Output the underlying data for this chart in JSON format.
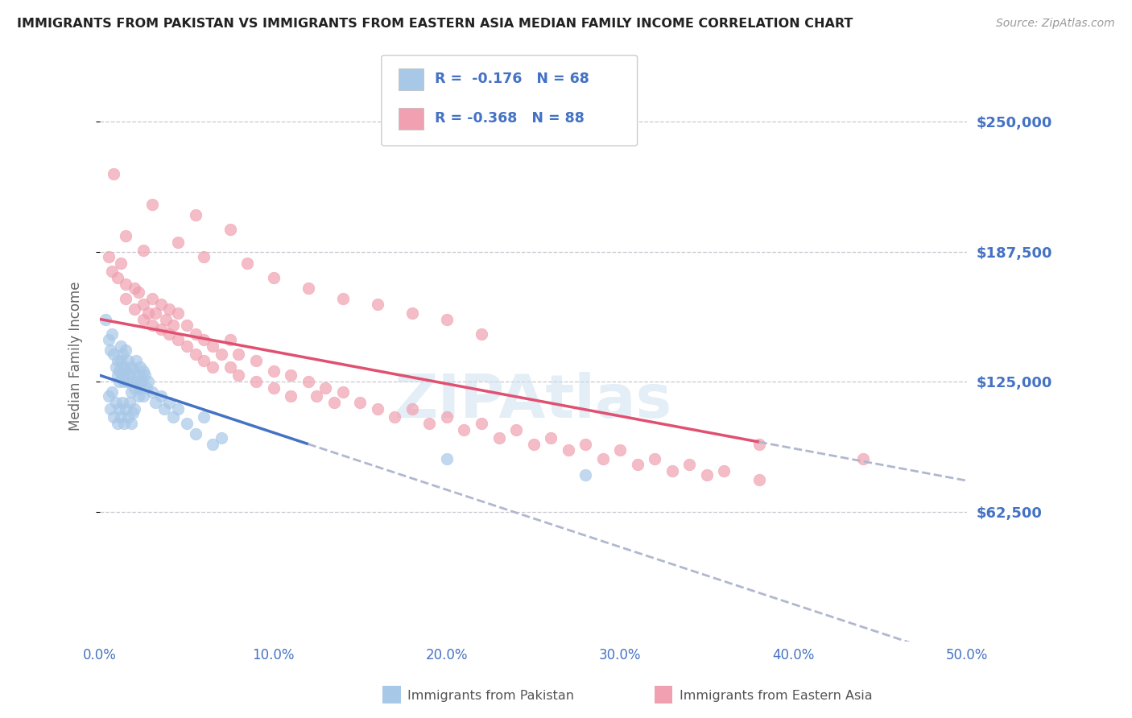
{
  "title": "IMMIGRANTS FROM PAKISTAN VS IMMIGRANTS FROM EASTERN ASIA MEDIAN FAMILY INCOME CORRELATION CHART",
  "source": "Source: ZipAtlas.com",
  "ylabel": "Median Family Income",
  "xlim": [
    0.0,
    50.0
  ],
  "ylim": [
    0,
    275000
  ],
  "yticks": [
    62500,
    125000,
    187500,
    250000
  ],
  "ytick_labels": [
    "$62,500",
    "$125,000",
    "$187,500",
    "$250,000"
  ],
  "background_color": "#ffffff",
  "grid_color": "#c8c8d0",
  "watermark": "ZIPAtlas",
  "legend_R1": "R =  -0.176",
  "legend_N1": "N = 68",
  "legend_R2": "R = -0.368",
  "legend_N2": "N = 88",
  "series1_name": "Immigrants from Pakistan",
  "series2_name": "Immigrants from Eastern Asia",
  "series1_color": "#a8c8e8",
  "series2_color": "#f0a0b0",
  "series1_line_color": "#4472c4",
  "series2_line_color": "#e05070",
  "dashed_color": "#b0b8d0",
  "title_color": "#222222",
  "axis_label_color": "#4472c4",
  "xticks": [
    0,
    10,
    20,
    30,
    40,
    50
  ],
  "xtick_labels": [
    "0.0%",
    "10.0%",
    "20.0%",
    "30.0%",
    "40.0%",
    "50.0%"
  ],
  "pk_line_x0": 0.0,
  "pk_line_x1": 12.0,
  "pk_line_y0": 128000,
  "pk_line_y1": 95000,
  "pk_dash_x0": 12.0,
  "pk_dash_x1": 50.0,
  "ea_line_x0": 0.0,
  "ea_line_x1": 38.0,
  "ea_line_y0": 155000,
  "ea_line_y1": 96000,
  "ea_dash_x0": 38.0,
  "ea_dash_x1": 50.0,
  "pakistan_points": [
    [
      0.3,
      155000
    ],
    [
      0.5,
      145000
    ],
    [
      0.6,
      140000
    ],
    [
      0.7,
      148000
    ],
    [
      0.8,
      138000
    ],
    [
      0.9,
      132000
    ],
    [
      1.0,
      128000
    ],
    [
      1.0,
      135000
    ],
    [
      1.1,
      130000
    ],
    [
      1.1,
      125000
    ],
    [
      1.2,
      142000
    ],
    [
      1.2,
      135000
    ],
    [
      1.3,
      138000
    ],
    [
      1.3,
      128000
    ],
    [
      1.4,
      132000
    ],
    [
      1.4,
      125000
    ],
    [
      1.5,
      140000
    ],
    [
      1.5,
      130000
    ],
    [
      1.6,
      135000
    ],
    [
      1.6,
      125000
    ],
    [
      1.7,
      128000
    ],
    [
      1.8,
      132000
    ],
    [
      1.8,
      120000
    ],
    [
      1.9,
      125000
    ],
    [
      2.0,
      130000
    ],
    [
      2.0,
      122000
    ],
    [
      2.1,
      135000
    ],
    [
      2.1,
      125000
    ],
    [
      2.2,
      128000
    ],
    [
      2.2,
      118000
    ],
    [
      2.3,
      132000
    ],
    [
      2.3,
      122000
    ],
    [
      2.4,
      125000
    ],
    [
      2.5,
      130000
    ],
    [
      2.5,
      118000
    ],
    [
      2.6,
      128000
    ],
    [
      2.7,
      122000
    ],
    [
      2.8,
      125000
    ],
    [
      3.0,
      120000
    ],
    [
      3.2,
      115000
    ],
    [
      3.5,
      118000
    ],
    [
      3.7,
      112000
    ],
    [
      4.0,
      115000
    ],
    [
      4.2,
      108000
    ],
    [
      4.5,
      112000
    ],
    [
      5.0,
      105000
    ],
    [
      5.5,
      100000
    ],
    [
      6.0,
      108000
    ],
    [
      6.5,
      95000
    ],
    [
      7.0,
      98000
    ],
    [
      0.5,
      118000
    ],
    [
      0.6,
      112000
    ],
    [
      0.7,
      120000
    ],
    [
      0.8,
      108000
    ],
    [
      0.9,
      115000
    ],
    [
      1.0,
      105000
    ],
    [
      1.1,
      112000
    ],
    [
      1.2,
      108000
    ],
    [
      1.3,
      115000
    ],
    [
      1.4,
      105000
    ],
    [
      1.5,
      112000
    ],
    [
      1.6,
      108000
    ],
    [
      1.7,
      115000
    ],
    [
      1.8,
      105000
    ],
    [
      1.9,
      110000
    ],
    [
      2.0,
      112000
    ],
    [
      20.0,
      88000
    ],
    [
      28.0,
      80000
    ]
  ],
  "eastern_asia_points": [
    [
      0.5,
      185000
    ],
    [
      0.7,
      178000
    ],
    [
      1.0,
      175000
    ],
    [
      1.2,
      182000
    ],
    [
      1.5,
      172000
    ],
    [
      1.5,
      165000
    ],
    [
      2.0,
      170000
    ],
    [
      2.0,
      160000
    ],
    [
      2.2,
      168000
    ],
    [
      2.5,
      162000
    ],
    [
      2.5,
      155000
    ],
    [
      2.8,
      158000
    ],
    [
      3.0,
      165000
    ],
    [
      3.0,
      152000
    ],
    [
      3.2,
      158000
    ],
    [
      3.5,
      162000
    ],
    [
      3.5,
      150000
    ],
    [
      3.8,
      155000
    ],
    [
      4.0,
      160000
    ],
    [
      4.0,
      148000
    ],
    [
      4.2,
      152000
    ],
    [
      4.5,
      158000
    ],
    [
      4.5,
      145000
    ],
    [
      5.0,
      152000
    ],
    [
      5.0,
      142000
    ],
    [
      5.5,
      148000
    ],
    [
      5.5,
      138000
    ],
    [
      6.0,
      145000
    ],
    [
      6.0,
      135000
    ],
    [
      6.5,
      142000
    ],
    [
      6.5,
      132000
    ],
    [
      7.0,
      138000
    ],
    [
      7.5,
      145000
    ],
    [
      7.5,
      132000
    ],
    [
      8.0,
      138000
    ],
    [
      8.0,
      128000
    ],
    [
      9.0,
      135000
    ],
    [
      9.0,
      125000
    ],
    [
      10.0,
      130000
    ],
    [
      10.0,
      122000
    ],
    [
      11.0,
      128000
    ],
    [
      11.0,
      118000
    ],
    [
      12.0,
      125000
    ],
    [
      12.5,
      118000
    ],
    [
      13.0,
      122000
    ],
    [
      13.5,
      115000
    ],
    [
      14.0,
      120000
    ],
    [
      15.0,
      115000
    ],
    [
      16.0,
      112000
    ],
    [
      17.0,
      108000
    ],
    [
      18.0,
      112000
    ],
    [
      19.0,
      105000
    ],
    [
      20.0,
      108000
    ],
    [
      21.0,
      102000
    ],
    [
      22.0,
      105000
    ],
    [
      23.0,
      98000
    ],
    [
      24.0,
      102000
    ],
    [
      25.0,
      95000
    ],
    [
      26.0,
      98000
    ],
    [
      27.0,
      92000
    ],
    [
      28.0,
      95000
    ],
    [
      29.0,
      88000
    ],
    [
      30.0,
      92000
    ],
    [
      31.0,
      85000
    ],
    [
      32.0,
      88000
    ],
    [
      33.0,
      82000
    ],
    [
      34.0,
      85000
    ],
    [
      35.0,
      80000
    ],
    [
      36.0,
      82000
    ],
    [
      38.0,
      78000
    ],
    [
      0.8,
      225000
    ],
    [
      3.0,
      210000
    ],
    [
      5.5,
      205000
    ],
    [
      7.5,
      198000
    ],
    [
      1.5,
      195000
    ],
    [
      2.5,
      188000
    ],
    [
      4.5,
      192000
    ],
    [
      6.0,
      185000
    ],
    [
      8.5,
      182000
    ],
    [
      10.0,
      175000
    ],
    [
      12.0,
      170000
    ],
    [
      14.0,
      165000
    ],
    [
      16.0,
      162000
    ],
    [
      18.0,
      158000
    ],
    [
      20.0,
      155000
    ],
    [
      22.0,
      148000
    ],
    [
      38.0,
      95000
    ],
    [
      44.0,
      88000
    ]
  ]
}
